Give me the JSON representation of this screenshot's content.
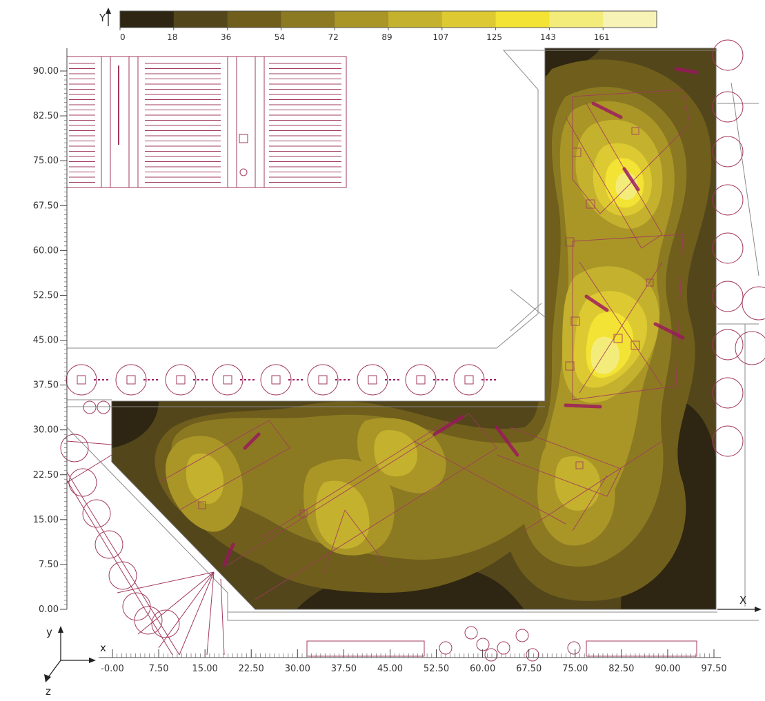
{
  "color_scale": {
    "axis_letter": "Y",
    "ticks": [
      "0",
      "18",
      "36",
      "54",
      "72",
      "89",
      "107",
      "125",
      "143",
      "161"
    ],
    "colors": [
      "#2e2613",
      "#53461b",
      "#6f5e1c",
      "#8c7a22",
      "#a99627",
      "#c4b12d",
      "#ddc931",
      "#f2e334",
      "#f4ec7a",
      "#f7f2b5"
    ]
  },
  "y_axis": {
    "ticks": [
      "90.00",
      "82.50",
      "75.00",
      "67.50",
      "60.00",
      "52.50",
      "45.00",
      "37.50",
      "30.00",
      "22.50",
      "15.00",
      "7.50",
      "0.00"
    ]
  },
  "x_axis": {
    "ticks": [
      "-0.00",
      "7.50",
      "15.00",
      "22.50",
      "30.00",
      "37.50",
      "45.00",
      "52.50",
      "60.00",
      "67.50",
      "75.00",
      "82.50",
      "90.00",
      "97.50"
    ]
  },
  "axis_letters": {
    "x": "X",
    "triad_x": "x",
    "triad_y": "y",
    "triad_z": "z"
  },
  "plan": {
    "line_color": "#a2395f",
    "accent_color": "#9c1660",
    "outline_color": "#8a8a8a"
  }
}
